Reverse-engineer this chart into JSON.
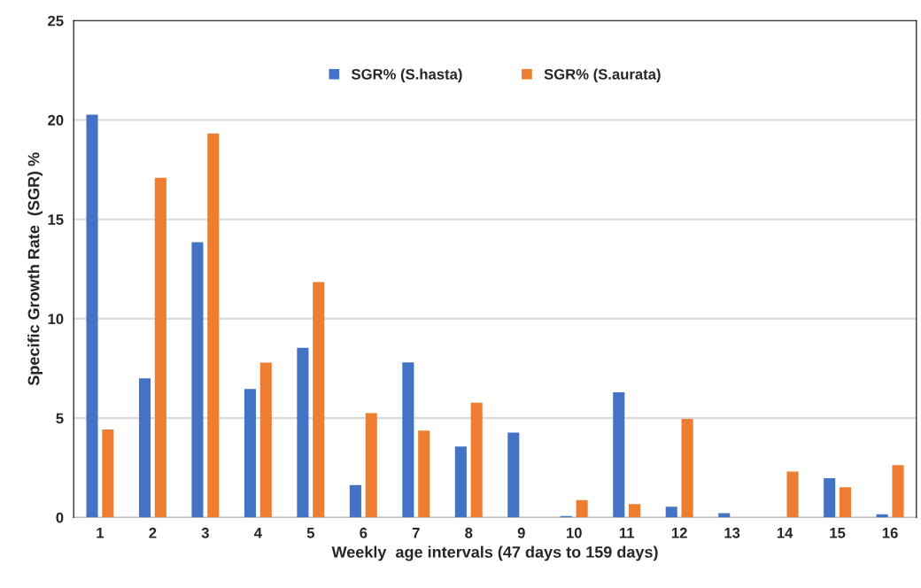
{
  "chart_data": {
    "type": "bar",
    "xlabel": "Weekly  age intervals (47 days to 159 days)",
    "ylabel": "Specific Growth Rate  (SGR) %",
    "categories": [
      "1",
      "2",
      "3",
      "4",
      "5",
      "6",
      "7",
      "8",
      "9",
      "10",
      "11",
      "12",
      "13",
      "14",
      "15",
      "16"
    ],
    "series": [
      {
        "name": "SGR% (S.hasta)",
        "color": "#4472c4",
        "values": [
          20.27,
          7.0,
          13.85,
          6.46,
          8.54,
          1.63,
          7.8,
          3.57,
          4.27,
          0.07,
          6.3,
          0.54,
          0.21,
          null,
          1.97,
          0.16
        ]
      },
      {
        "name": "SGR% (S.aurata)",
        "color": "#ed7d31",
        "values": [
          4.43,
          17.09,
          19.32,
          7.79,
          11.84,
          5.25,
          4.37,
          5.77,
          null,
          0.87,
          0.67,
          4.96,
          null,
          2.31,
          1.52,
          2.63
        ]
      }
    ],
    "ylim": [
      0,
      25
    ],
    "yticks": [
      0,
      5,
      10,
      15,
      20,
      25
    ],
    "grid": "y",
    "legend": "top"
  }
}
